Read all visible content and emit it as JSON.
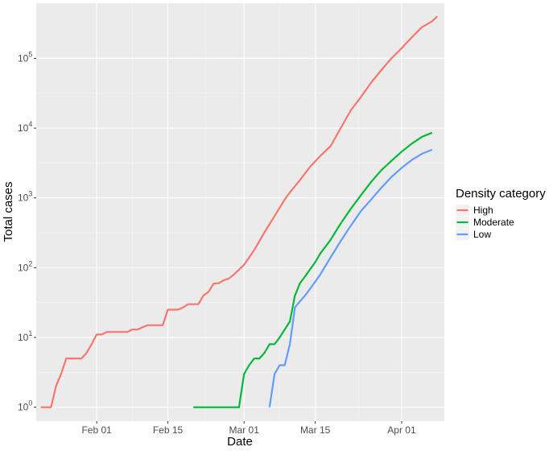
{
  "chart_data": {
    "type": "line",
    "xlabel": "Date",
    "ylabel": "Total cases",
    "y_scale": "log10",
    "ylim": [
      1,
      400000
    ],
    "x_range": [
      "2020-01-21",
      "2020-04-07"
    ],
    "x_ticks": [
      {
        "date": "2020-02-01",
        "label": "Feb 01"
      },
      {
        "date": "2020-02-15",
        "label": "Feb 15"
      },
      {
        "date": "2020-03-01",
        "label": "Mar 01"
      },
      {
        "date": "2020-03-15",
        "label": "Mar 15"
      },
      {
        "date": "2020-04-01",
        "label": "Apr 01"
      }
    ],
    "y_ticks": [
      {
        "value": 1,
        "base": "10",
        "exp": "0"
      },
      {
        "value": 10,
        "base": "10",
        "exp": "1"
      },
      {
        "value": 100,
        "base": "10",
        "exp": "2"
      },
      {
        "value": 1000,
        "base": "10",
        "exp": "3"
      },
      {
        "value": 10000,
        "base": "10",
        "exp": "4"
      },
      {
        "value": 100000,
        "base": "10",
        "exp": "5"
      }
    ],
    "grid": true,
    "legend": {
      "title": "Density category",
      "position": "right"
    },
    "series": [
      {
        "name": "High",
        "color": "#F8766D",
        "points": [
          [
            "2020-01-21",
            1
          ],
          [
            "2020-01-23",
            1
          ],
          [
            "2020-01-24",
            2
          ],
          [
            "2020-01-25",
            3
          ],
          [
            "2020-01-26",
            5
          ],
          [
            "2020-01-28",
            5
          ],
          [
            "2020-01-29",
            5
          ],
          [
            "2020-01-30",
            6
          ],
          [
            "2020-01-31",
            8
          ],
          [
            "2020-02-01",
            11
          ],
          [
            "2020-02-02",
            11
          ],
          [
            "2020-02-03",
            12
          ],
          [
            "2020-02-07",
            12
          ],
          [
            "2020-02-08",
            13
          ],
          [
            "2020-02-09",
            13
          ],
          [
            "2020-02-10",
            14
          ],
          [
            "2020-02-11",
            15
          ],
          [
            "2020-02-14",
            15
          ],
          [
            "2020-02-15",
            25
          ],
          [
            "2020-02-17",
            25
          ],
          [
            "2020-02-18",
            27
          ],
          [
            "2020-02-19",
            30
          ],
          [
            "2020-02-21",
            30
          ],
          [
            "2020-02-22",
            40
          ],
          [
            "2020-02-23",
            45
          ],
          [
            "2020-02-24",
            59
          ],
          [
            "2020-02-25",
            60
          ],
          [
            "2020-02-26",
            66
          ],
          [
            "2020-02-27",
            70
          ],
          [
            "2020-02-28",
            80
          ],
          [
            "2020-03-01",
            110
          ],
          [
            "2020-03-02",
            140
          ],
          [
            "2020-03-03",
            180
          ],
          [
            "2020-03-05",
            320
          ],
          [
            "2020-03-07",
            550
          ],
          [
            "2020-03-09",
            950
          ],
          [
            "2020-03-10",
            1200
          ],
          [
            "2020-03-12",
            1800
          ],
          [
            "2020-03-14",
            2800
          ],
          [
            "2020-03-16",
            4000
          ],
          [
            "2020-03-18",
            5500
          ],
          [
            "2020-03-20",
            10000
          ],
          [
            "2020-03-22",
            18000
          ],
          [
            "2020-03-24",
            28000
          ],
          [
            "2020-03-26",
            45000
          ],
          [
            "2020-03-28",
            68000
          ],
          [
            "2020-03-30",
            100000
          ],
          [
            "2020-04-01",
            140000
          ],
          [
            "2020-04-03",
            200000
          ],
          [
            "2020-04-05",
            280000
          ],
          [
            "2020-04-07",
            340000
          ],
          [
            "2020-04-08",
            400000
          ]
        ]
      },
      {
        "name": "Moderate",
        "color": "#00BA38",
        "points": [
          [
            "2020-02-20",
            1
          ],
          [
            "2020-02-29",
            1
          ],
          [
            "2020-03-01",
            3
          ],
          [
            "2020-03-02",
            4
          ],
          [
            "2020-03-03",
            5
          ],
          [
            "2020-03-04",
            5
          ],
          [
            "2020-03-05",
            6
          ],
          [
            "2020-03-06",
            8
          ],
          [
            "2020-03-07",
            8
          ],
          [
            "2020-03-08",
            10
          ],
          [
            "2020-03-09",
            13
          ],
          [
            "2020-03-10",
            17
          ],
          [
            "2020-03-11",
            40
          ],
          [
            "2020-03-12",
            60
          ],
          [
            "2020-03-13",
            75
          ],
          [
            "2020-03-14",
            95
          ],
          [
            "2020-03-15",
            120
          ],
          [
            "2020-03-16",
            160
          ],
          [
            "2020-03-18",
            250
          ],
          [
            "2020-03-20",
            430
          ],
          [
            "2020-03-22",
            700
          ],
          [
            "2020-03-24",
            1100
          ],
          [
            "2020-03-26",
            1700
          ],
          [
            "2020-03-28",
            2500
          ],
          [
            "2020-03-30",
            3400
          ],
          [
            "2020-04-01",
            4600
          ],
          [
            "2020-04-03",
            6000
          ],
          [
            "2020-04-05",
            7500
          ],
          [
            "2020-04-07",
            8600
          ]
        ]
      },
      {
        "name": "Low",
        "color": "#619CFF",
        "points": [
          [
            "2020-03-06",
            1
          ],
          [
            "2020-03-07",
            3
          ],
          [
            "2020-03-08",
            4
          ],
          [
            "2020-03-09",
            4
          ],
          [
            "2020-03-10",
            8
          ],
          [
            "2020-03-11",
            27
          ],
          [
            "2020-03-12",
            33
          ],
          [
            "2020-03-13",
            40
          ],
          [
            "2020-03-14",
            50
          ],
          [
            "2020-03-16",
            80
          ],
          [
            "2020-03-18",
            140
          ],
          [
            "2020-03-20",
            240
          ],
          [
            "2020-03-22",
            400
          ],
          [
            "2020-03-24",
            650
          ],
          [
            "2020-03-26",
            950
          ],
          [
            "2020-03-28",
            1400
          ],
          [
            "2020-03-30",
            2000
          ],
          [
            "2020-04-01",
            2700
          ],
          [
            "2020-04-03",
            3500
          ],
          [
            "2020-04-05",
            4300
          ],
          [
            "2020-04-07",
            4900
          ]
        ]
      }
    ]
  }
}
